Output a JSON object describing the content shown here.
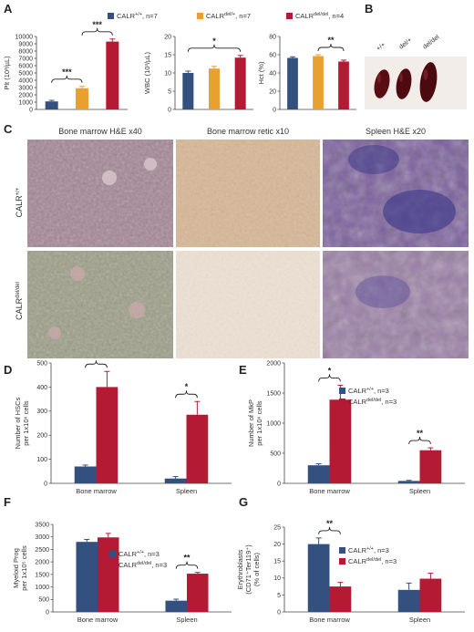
{
  "panels": {
    "A": "A",
    "B": "B",
    "C": "C",
    "D": "D",
    "E": "E",
    "F": "F",
    "G": "G"
  },
  "colors": {
    "wt": "#34507f",
    "het": "#e8a030",
    "hom": "#b51a35"
  },
  "legend_A": [
    {
      "key": "wt",
      "base": "CALR",
      "sup": "+/+",
      "rest": ", n=7"
    },
    {
      "key": "het",
      "base": "CALR",
      "sup": "del/+",
      "rest": ", n=7"
    },
    {
      "key": "hom",
      "base": "CALR",
      "sup": "del/del",
      "rest": ", n=4"
    }
  ],
  "legend_two": [
    {
      "key": "wt",
      "base": "CALR",
      "sup": "+/+",
      "rest": ", n=3"
    },
    {
      "key": "hom",
      "base": "CALR",
      "sup": "del/del",
      "rest": ", n=3"
    }
  ],
  "spleen_photo": {
    "labels": [
      "+/+",
      "del/+",
      "del/del"
    ]
  },
  "histology": {
    "column_headers": [
      "Bone marrow H&E x40",
      "Bone marrow retic x10",
      "Spleen H&E x20"
    ],
    "row_labels": [
      {
        "base": "CALR",
        "sup": "+/+"
      },
      {
        "base": "CALR",
        "sup": "del/del"
      }
    ]
  },
  "chart_data": [
    {
      "id": "A1",
      "type": "bar",
      "ylabel": "Plt (10³/µL)",
      "ylim": [
        0,
        10000
      ],
      "yticks": [
        0,
        1000,
        2000,
        3000,
        4000,
        5000,
        6000,
        7000,
        8000,
        9000,
        10000
      ],
      "values": [
        1100,
        2900,
        9300
      ],
      "errors": [
        150,
        250,
        350
      ],
      "significance": [
        {
          "from": 0,
          "to": 1,
          "label": "***"
        },
        {
          "from": 1,
          "to": 2,
          "label": "***"
        }
      ]
    },
    {
      "id": "A2",
      "type": "bar",
      "ylabel": "WBC (10³/µL)",
      "ylim": [
        0,
        20
      ],
      "yticks": [
        0,
        5,
        10,
        15,
        20
      ],
      "values": [
        10,
        11.2,
        14.2
      ],
      "errors": [
        0.5,
        0.6,
        0.6
      ],
      "significance": [
        {
          "from": 0,
          "to": 2,
          "label": "*"
        }
      ]
    },
    {
      "id": "A3",
      "type": "bar",
      "ylabel": "Hct (%)",
      "ylim": [
        0,
        80
      ],
      "yticks": [
        0,
        20,
        40,
        60,
        80
      ],
      "values": [
        56.5,
        58.5,
        52.5
      ],
      "errors": [
        1.2,
        1.5,
        1.5
      ],
      "significance": [
        {
          "from": 1,
          "to": 2,
          "label": "**"
        }
      ]
    },
    {
      "id": "D",
      "type": "bar",
      "ylabel": [
        "Number of HSCs",
        "per 1x10⁶ cells"
      ],
      "ylim": [
        0,
        500
      ],
      "yticks": [
        0,
        100,
        200,
        300,
        400,
        500
      ],
      "categories": [
        "Bone marrow",
        "Spleen"
      ],
      "series": [
        {
          "key": "wt",
          "values": [
            70,
            20
          ],
          "errors": [
            6,
            8
          ]
        },
        {
          "key": "hom",
          "values": [
            400,
            285
          ],
          "errors": [
            65,
            55
          ]
        }
      ],
      "significance": [
        {
          "category": 0,
          "label": "*"
        },
        {
          "category": 1,
          "label": "*"
        }
      ]
    },
    {
      "id": "E",
      "type": "bar",
      "ylabel": [
        "Number of MkP",
        "per 1x10⁶ cells"
      ],
      "ylim": [
        0,
        2000
      ],
      "yticks": [
        0,
        500,
        1000,
        1500,
        2000
      ],
      "categories": [
        "Bone marrow",
        "Spleen"
      ],
      "series": [
        {
          "key": "wt",
          "values": [
            300,
            40
          ],
          "errors": [
            25,
            10
          ]
        },
        {
          "key": "hom",
          "values": [
            1390,
            550
          ],
          "errors": [
            240,
            40
          ]
        }
      ],
      "significance": [
        {
          "category": 0,
          "label": "*"
        },
        {
          "category": 1,
          "label": "**"
        }
      ]
    },
    {
      "id": "F",
      "type": "bar",
      "ylabel": [
        "Myeloid Prog",
        "per 1x10⁵ cells"
      ],
      "ylim": [
        0,
        3500
      ],
      "yticks": [
        0,
        500,
        1000,
        1500,
        2000,
        2500,
        3000,
        3500
      ],
      "categories": [
        "Bone marrow",
        "Spleen"
      ],
      "series": [
        {
          "key": "wt",
          "values": [
            2800,
            450
          ],
          "errors": [
            100,
            60
          ]
        },
        {
          "key": "hom",
          "values": [
            2980,
            1530
          ],
          "errors": [
            160,
            50
          ]
        }
      ],
      "significance": [
        {
          "category": 1,
          "label": "**"
        }
      ]
    },
    {
      "id": "G",
      "type": "bar",
      "ylabel": [
        "Erythroblasts",
        "(CD71⁺Ter119⁺)",
        "(% of cells)"
      ],
      "ylim": [
        0,
        25
      ],
      "yticks": [
        0,
        5,
        10,
        15,
        20,
        25
      ],
      "categories": [
        "Bone marrow",
        "Spleen"
      ],
      "series": [
        {
          "key": "wt",
          "values": [
            20,
            6.5
          ],
          "errors": [
            1.8,
            2
          ]
        },
        {
          "key": "hom",
          "values": [
            7.5,
            9.8
          ],
          "errors": [
            1.2,
            1.6
          ]
        }
      ],
      "significance": [
        {
          "category": 0,
          "label": "**"
        }
      ]
    }
  ]
}
